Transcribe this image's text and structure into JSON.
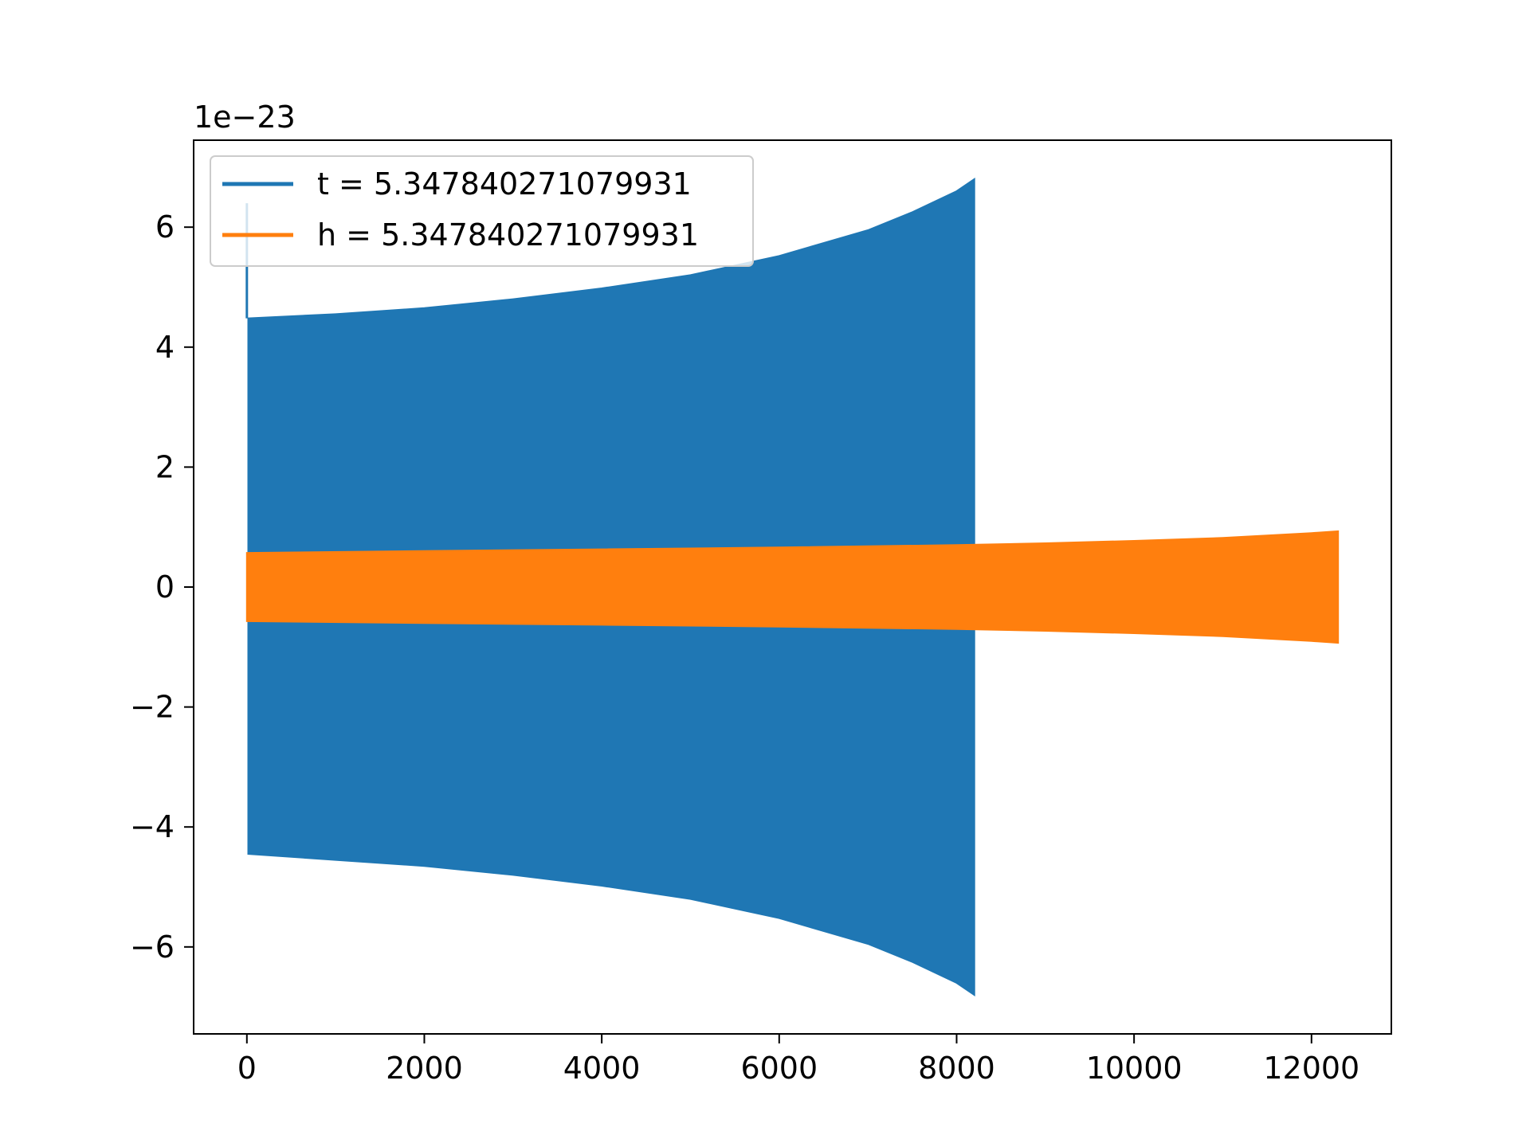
{
  "chart_data": {
    "type": "line",
    "title": "",
    "xlabel": "",
    "ylabel": "",
    "offset_text": "1e−23",
    "xlim": [
      -600,
      12900
    ],
    "ylim": [
      -7.45,
      7.45
    ],
    "xticks": [
      0,
      2000,
      4000,
      6000,
      8000,
      10000,
      12000
    ],
    "xtick_labels": [
      "0",
      "2000",
      "4000",
      "6000",
      "8000",
      "10000",
      "12000"
    ],
    "yticks": [
      -6,
      -4,
      -2,
      0,
      2,
      4,
      6
    ],
    "ytick_labels": [
      "−6",
      "−4",
      "−2",
      "0",
      "2",
      "4",
      "6"
    ],
    "grid": false,
    "legend_location": "upper left",
    "series": [
      {
        "name": "t = 5.347840271079931",
        "color": "#1f77b4",
        "style": "dense oscillation (filled envelope)",
        "spike": {
          "x": 0,
          "max": 6.4
        },
        "envelope": {
          "x": [
            15,
            1000,
            2000,
            3000,
            4000,
            5000,
            6000,
            7000,
            7500,
            8000,
            8200
          ],
          "upper": [
            4.48,
            4.55,
            4.65,
            4.8,
            4.98,
            5.2,
            5.52,
            5.95,
            6.25,
            6.6,
            6.8
          ],
          "lower": [
            -4.45,
            -4.55,
            -4.65,
            -4.8,
            -4.98,
            -5.2,
            -5.52,
            -5.95,
            -6.25,
            -6.6,
            -6.8
          ]
        }
      },
      {
        "name": "h = 5.347840271079931",
        "color": "#ff7f0e",
        "style": "dense oscillation (filled envelope)",
        "envelope": {
          "x": [
            0,
            2000,
            4000,
            6000,
            8000,
            9000,
            10000,
            11000,
            12000,
            12300
          ],
          "upper": [
            0.57,
            0.6,
            0.63,
            0.66,
            0.7,
            0.73,
            0.77,
            0.82,
            0.9,
            0.93
          ],
          "lower": [
            -0.57,
            -0.6,
            -0.63,
            -0.66,
            -0.7,
            -0.73,
            -0.77,
            -0.82,
            -0.9,
            -0.93
          ]
        }
      }
    ]
  }
}
